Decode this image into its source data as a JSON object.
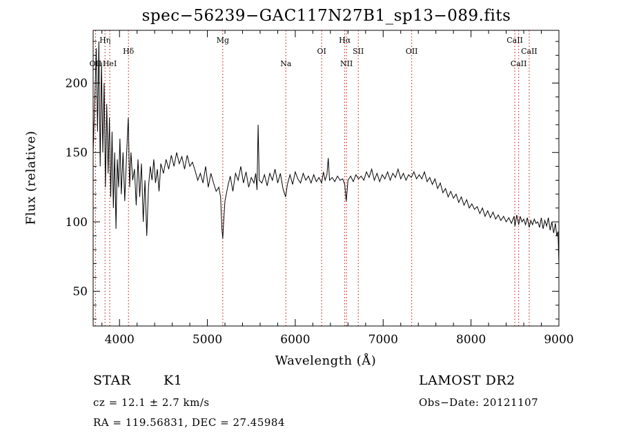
{
  "chart_data": {
    "type": "line",
    "title": "spec−56239−GAC117N27B1_sp13−089.fits",
    "xlabel": "Wavelength (Å)",
    "ylabel": "Flux (relative)",
    "xlim": [
      3700,
      9000
    ],
    "ylim": [
      25,
      238
    ],
    "xticks": [
      4000,
      5000,
      6000,
      7000,
      8000,
      9000
    ],
    "xtick_labels": [
      "4000",
      "5000",
      "6000",
      "7000",
      "8000",
      "9000"
    ],
    "yticks": [
      50,
      100,
      150,
      200
    ],
    "ytick_labels": [
      "50",
      "100",
      "150",
      "200"
    ],
    "grid": false,
    "line_color": "#000000",
    "marker_color": "#cc0000",
    "series": [
      {
        "points": [
          [
            3700,
            150
          ],
          [
            3720,
            190
          ],
          [
            3735,
            225
          ],
          [
            3750,
            165
          ],
          [
            3765,
            230
          ],
          [
            3780,
            140
          ],
          [
            3795,
            215
          ],
          [
            3810,
            150
          ],
          [
            3825,
            200
          ],
          [
            3840,
            125
          ],
          [
            3855,
            185
          ],
          [
            3870,
            135
          ],
          [
            3885,
            175
          ],
          [
            3900,
            118
          ],
          [
            3915,
            165
          ],
          [
            3930,
            110
          ],
          [
            3945,
            150
          ],
          [
            3960,
            95
          ],
          [
            3975,
            145
          ],
          [
            3990,
            125
          ],
          [
            4005,
            160
          ],
          [
            4020,
            120
          ],
          [
            4040,
            150
          ],
          [
            4060,
            115
          ],
          [
            4080,
            148
          ],
          [
            4100,
            175
          ],
          [
            4115,
            125
          ],
          [
            4130,
            150
          ],
          [
            4150,
            130
          ],
          [
            4170,
            138
          ],
          [
            4190,
            112
          ],
          [
            4210,
            145
          ],
          [
            4230,
            118
          ],
          [
            4250,
            142
          ],
          [
            4270,
            100
          ],
          [
            4290,
            130
          ],
          [
            4310,
            90
          ],
          [
            4330,
            125
          ],
          [
            4350,
            140
          ],
          [
            4370,
            130
          ],
          [
            4390,
            145
          ],
          [
            4410,
            128
          ],
          [
            4430,
            138
          ],
          [
            4450,
            122
          ],
          [
            4470,
            142
          ],
          [
            4500,
            135
          ],
          [
            4530,
            145
          ],
          [
            4560,
            138
          ],
          [
            4590,
            148
          ],
          [
            4620,
            140
          ],
          [
            4650,
            150
          ],
          [
            4680,
            142
          ],
          [
            4710,
            147
          ],
          [
            4740,
            138
          ],
          [
            4770,
            148
          ],
          [
            4800,
            140
          ],
          [
            4830,
            143
          ],
          [
            4860,
            137
          ],
          [
            4890,
            130
          ],
          [
            4920,
            135
          ],
          [
            4950,
            128
          ],
          [
            4980,
            140
          ],
          [
            5010,
            125
          ],
          [
            5040,
            135
          ],
          [
            5070,
            128
          ],
          [
            5100,
            122
          ],
          [
            5130,
            125
          ],
          [
            5150,
            118
          ],
          [
            5165,
            95
          ],
          [
            5175,
            88
          ],
          [
            5185,
            100
          ],
          [
            5200,
            115
          ],
          [
            5230,
            125
          ],
          [
            5260,
            133
          ],
          [
            5290,
            122
          ],
          [
            5320,
            135
          ],
          [
            5350,
            130
          ],
          [
            5380,
            140
          ],
          [
            5410,
            128
          ],
          [
            5440,
            136
          ],
          [
            5470,
            125
          ],
          [
            5500,
            132
          ],
          [
            5530,
            128
          ],
          [
            5550,
            135
          ],
          [
            5565,
            123
          ],
          [
            5577,
            170
          ],
          [
            5590,
            130
          ],
          [
            5620,
            128
          ],
          [
            5650,
            134
          ],
          [
            5680,
            126
          ],
          [
            5710,
            135
          ],
          [
            5740,
            130
          ],
          [
            5770,
            138
          ],
          [
            5800,
            128
          ],
          [
            5830,
            135
          ],
          [
            5860,
            124
          ],
          [
            5890,
            118
          ],
          [
            5910,
            127
          ],
          [
            5940,
            134
          ],
          [
            5970,
            127
          ],
          [
            6000,
            136
          ],
          [
            6030,
            131
          ],
          [
            6060,
            128
          ],
          [
            6090,
            135
          ],
          [
            6120,
            130
          ],
          [
            6150,
            133
          ],
          [
            6180,
            128
          ],
          [
            6210,
            134
          ],
          [
            6240,
            129
          ],
          [
            6270,
            132
          ],
          [
            6300,
            128
          ],
          [
            6320,
            136
          ],
          [
            6340,
            130
          ],
          [
            6360,
            134
          ],
          [
            6375,
            146
          ],
          [
            6390,
            130
          ],
          [
            6420,
            132
          ],
          [
            6450,
            129
          ],
          [
            6480,
            133
          ],
          [
            6510,
            130
          ],
          [
            6540,
            131
          ],
          [
            6563,
            127
          ],
          [
            6580,
            115
          ],
          [
            6600,
            130
          ],
          [
            6630,
            133
          ],
          [
            6660,
            129
          ],
          [
            6690,
            134
          ],
          [
            6720,
            131
          ],
          [
            6750,
            133
          ],
          [
            6780,
            130
          ],
          [
            6810,
            136
          ],
          [
            6840,
            132
          ],
          [
            6870,
            138
          ],
          [
            6900,
            130
          ],
          [
            6930,
            135
          ],
          [
            6960,
            129
          ],
          [
            6990,
            134
          ],
          [
            7020,
            131
          ],
          [
            7050,
            136
          ],
          [
            7080,
            130
          ],
          [
            7110,
            135
          ],
          [
            7140,
            132
          ],
          [
            7170,
            138
          ],
          [
            7200,
            131
          ],
          [
            7230,
            135
          ],
          [
            7260,
            130
          ],
          [
            7290,
            134
          ],
          [
            7320,
            132
          ],
          [
            7350,
            136
          ],
          [
            7380,
            131
          ],
          [
            7410,
            134
          ],
          [
            7440,
            131
          ],
          [
            7470,
            136
          ],
          [
            7500,
            129
          ],
          [
            7530,
            132
          ],
          [
            7560,
            127
          ],
          [
            7590,
            131
          ],
          [
            7620,
            124
          ],
          [
            7650,
            128
          ],
          [
            7680,
            121
          ],
          [
            7710,
            124
          ],
          [
            7740,
            118
          ],
          [
            7770,
            122
          ],
          [
            7800,
            117
          ],
          [
            7830,
            120
          ],
          [
            7860,
            114
          ],
          [
            7890,
            118
          ],
          [
            7920,
            112
          ],
          [
            7950,
            116
          ],
          [
            7980,
            110
          ],
          [
            8010,
            113
          ],
          [
            8040,
            109
          ],
          [
            8070,
            111
          ],
          [
            8100,
            106
          ],
          [
            8130,
            110
          ],
          [
            8160,
            104
          ],
          [
            8190,
            108
          ],
          [
            8220,
            103
          ],
          [
            8250,
            107
          ],
          [
            8280,
            102
          ],
          [
            8310,
            105
          ],
          [
            8340,
            101
          ],
          [
            8370,
            104
          ],
          [
            8400,
            100
          ],
          [
            8430,
            103
          ],
          [
            8460,
            99
          ],
          [
            8490,
            104
          ],
          [
            8500,
            97
          ],
          [
            8520,
            105
          ],
          [
            8542,
            98
          ],
          [
            8560,
            104
          ],
          [
            8580,
            100
          ],
          [
            8600,
            102
          ],
          [
            8620,
            98
          ],
          [
            8640,
            103
          ],
          [
            8662,
            96
          ],
          [
            8680,
            101
          ],
          [
            8700,
            98
          ],
          [
            8720,
            102
          ],
          [
            8740,
            99
          ],
          [
            8760,
            100
          ],
          [
            8780,
            96
          ],
          [
            8800,
            103
          ],
          [
            8820,
            95
          ],
          [
            8840,
            101
          ],
          [
            8860,
            97
          ],
          [
            8880,
            103
          ],
          [
            8900,
            94
          ],
          [
            8920,
            100
          ],
          [
            8940,
            92
          ],
          [
            8960,
            99
          ],
          [
            8975,
            90
          ],
          [
            8990,
            93
          ],
          [
            9000,
            70
          ]
        ]
      }
    ],
    "lines": [
      {
        "label": "Hη",
        "wavelength": 3835,
        "row": 1
      },
      {
        "label": "OII",
        "wavelength": 3727,
        "row": 3
      },
      {
        "label": "HeI",
        "wavelength": 3889,
        "row": 3
      },
      {
        "label": "Hδ",
        "wavelength": 4102,
        "row": 2
      },
      {
        "label": "Mg",
        "wavelength": 5175,
        "row": 1
      },
      {
        "label": "Na",
        "wavelength": 5893,
        "row": 3
      },
      {
        "label": "OI",
        "wavelength": 6300,
        "row": 2
      },
      {
        "label": "Hα",
        "wavelength": 6563,
        "row": 1
      },
      {
        "label": "NII",
        "wavelength": 6583,
        "row": 3
      },
      {
        "label": "SII",
        "wavelength": 6717,
        "row": 2
      },
      {
        "label": "OII",
        "wavelength": 7325,
        "row": 2
      },
      {
        "label": "CaII",
        "wavelength": 8498,
        "row": 1
      },
      {
        "label": "CaII",
        "wavelength": 8542,
        "row": 3
      },
      {
        "label": "CaII",
        "wavelength": 8662,
        "row": 2
      }
    ]
  },
  "info": {
    "object_class": "STAR",
    "subclass": "K1",
    "survey": "LAMOST DR2",
    "cz": "cz = 12.1 ± 2.7 km/s",
    "obs_date": "Obs−Date: 20121107",
    "radec": "RA = 119.56831, DEC =  27.45984"
  }
}
